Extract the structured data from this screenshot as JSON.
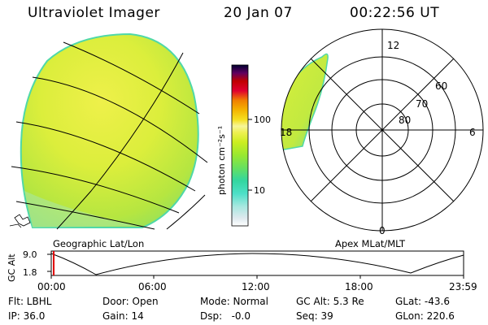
{
  "header": {
    "instrument": "Ultraviolet Imager",
    "date": "20 Jan 07",
    "time": "00:22:56  UT"
  },
  "colorbar": {
    "label": "photon cm⁻²s⁻¹",
    "ticks": [
      "100",
      "10"
    ],
    "colors": [
      "#ffffff",
      "#dde9ee",
      "#a8e8e0",
      "#4de0c8",
      "#33d6a0",
      "#66e060",
      "#99e830",
      "#ccee20",
      "#eef050",
      "#f6f59a",
      "#f5e020",
      "#f4b400",
      "#f08000",
      "#e00030",
      "#c00000",
      "#600060",
      "#000030"
    ]
  },
  "left_panel": {
    "caption": "Geographic Lat/Lon"
  },
  "right_panel": {
    "caption": "Apex MLat/MLT",
    "mlt_labels": {
      "top": "12",
      "right": "6",
      "bottom": "0",
      "left": "18"
    },
    "lat_labels": [
      "60",
      "70",
      "80"
    ]
  },
  "timeline": {
    "axis_label": "GC Alt",
    "y_ticks": [
      "9.0",
      "1.8"
    ],
    "x_ticks": [
      "00:00",
      "06:00",
      "12:00",
      "18:00",
      "23:59"
    ],
    "cursor_color": "#e00000"
  },
  "status": {
    "row1": {
      "flt": "Flt: LBHL",
      "door": "Door: Open",
      "mode": "Mode: Normal",
      "gcalt": "GC Alt: 5.3 Re",
      "glat": "GLat: -43.6"
    },
    "row2": {
      "ip": "IP: 36.0",
      "gain": "Gain: 14",
      "dsp": "Dsp:   -0.0",
      "seq": "Seq: 39",
      "glon": "GLon: 220.6"
    }
  }
}
